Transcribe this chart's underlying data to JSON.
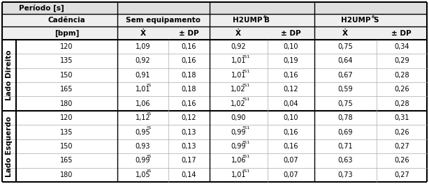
{
  "title": "Período [s]",
  "row_label_right": "Lado Direito",
  "row_label_left": "Lado Esquerdo",
  "lado_direito": {
    "cadencias": [
      "120",
      "135",
      "150",
      "165",
      "180"
    ],
    "sem_eq_x": [
      "1,09",
      "0,92",
      "0,91",
      "1,01*S",
      "1,06"
    ],
    "sem_eq_dp": [
      "0,16",
      "0,16",
      "0,18",
      "0,18",
      "0,16"
    ],
    "h2ump_b_x": [
      "0,92",
      "1,01*S1",
      "1,01*S1",
      "1,02*S1",
      "1,02*S1"
    ],
    "h2ump_b_dp": [
      "0,10",
      "0,19",
      "0,16",
      "0,12",
      "0,04"
    ],
    "h2ump_s_x": [
      "0,75",
      "0,64",
      "0,67",
      "0,59",
      "0,75"
    ],
    "h2ump_s_dp": [
      "0,34",
      "0,29",
      "0,28",
      "0,26",
      "0,28"
    ]
  },
  "lado_esquerdo": {
    "cadencias": [
      "120",
      "135",
      "150",
      "165",
      "180"
    ],
    "sem_eq_x": [
      "1,12*S",
      "0,95*S",
      "0,93",
      "0,99*S",
      "1,05*S"
    ],
    "sem_eq_dp": [
      "0,12",
      "0,13",
      "0,13",
      "0,17",
      "0,14"
    ],
    "h2ump_b_x": [
      "0,90",
      "0,99*S1",
      "0,99*S1",
      "1,06*S1",
      "1,01*S1"
    ],
    "h2ump_b_dp": [
      "0,10",
      "0,16",
      "0,16",
      "0,07",
      "0,07"
    ],
    "h2ump_s_x": [
      "0,78",
      "0,69",
      "0,71",
      "0,63",
      "0,73"
    ],
    "h2ump_s_dp": [
      "0,31",
      "0,26",
      "0,27",
      "0,26",
      "0,27"
    ]
  },
  "bg_color": "#FFFFFF",
  "font_size": 7.0,
  "header_font_size": 7.5,
  "side_label_font_size": 7.5
}
